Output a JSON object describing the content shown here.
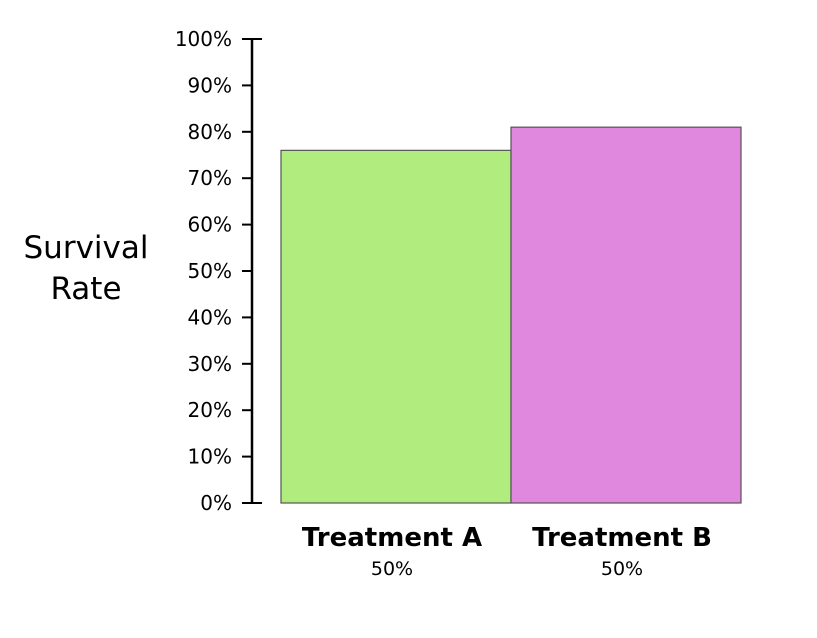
{
  "chart_data": {
    "type": "bar",
    "title": "",
    "xlabel": "",
    "ylabel_lines": [
      "Survival",
      "Rate"
    ],
    "ylim": [
      0,
      100
    ],
    "yticks": [
      0,
      10,
      20,
      30,
      40,
      50,
      60,
      70,
      80,
      90,
      100
    ],
    "ytick_labels": [
      "0%",
      "10%",
      "20%",
      "30%",
      "40%",
      "50%",
      "60%",
      "70%",
      "80%",
      "90%",
      "100%"
    ],
    "categories": [
      "Treatment A",
      "Treatment B"
    ],
    "category_shares": [
      "50%",
      "50%"
    ],
    "category_share_values": [
      50,
      50
    ],
    "values": [
      76,
      81
    ],
    "colors": [
      "#b1ec7e",
      "#e087de"
    ],
    "bar_outline_color": "#555555",
    "grid": false,
    "legend": "none"
  }
}
